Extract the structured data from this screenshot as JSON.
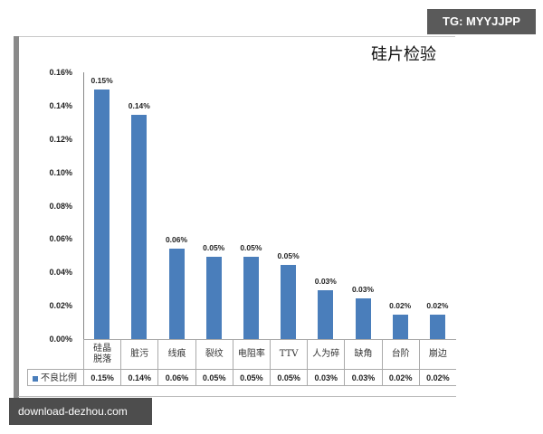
{
  "watermark_top": "TG: MYYJJPP",
  "watermark_bottom": "download-dezhou.com",
  "chart_data": {
    "type": "bar",
    "title": "硅片检验",
    "categories": [
      "硅晶脱落",
      "脏污",
      "线痕",
      "裂纹",
      "电阻率",
      "TTV",
      "人为碎",
      "缺角",
      "台阶",
      "崩边"
    ],
    "series": [
      {
        "name": "不良比例",
        "values": [
          0.15,
          0.135,
          0.055,
          0.05,
          0.05,
          0.045,
          0.03,
          0.025,
          0.015,
          0.015
        ]
      }
    ],
    "data_labels": [
      "0.15%",
      "0.14%",
      "0.06%",
      "0.05%",
      "0.05%",
      "0.05%",
      "0.03%",
      "0.03%",
      "0.02%",
      "0.02%"
    ],
    "yticks": [
      "0.16%",
      "0.14%",
      "0.12%",
      "0.10%",
      "0.08%",
      "0.06%",
      "0.04%",
      "0.02%",
      "0.00%"
    ],
    "ylim": [
      0,
      0.16
    ],
    "xlabel": "",
    "ylabel": "",
    "grid": false,
    "legend": {
      "label": "不良比例",
      "position": "data-table"
    },
    "color": "#4a7ebb"
  }
}
